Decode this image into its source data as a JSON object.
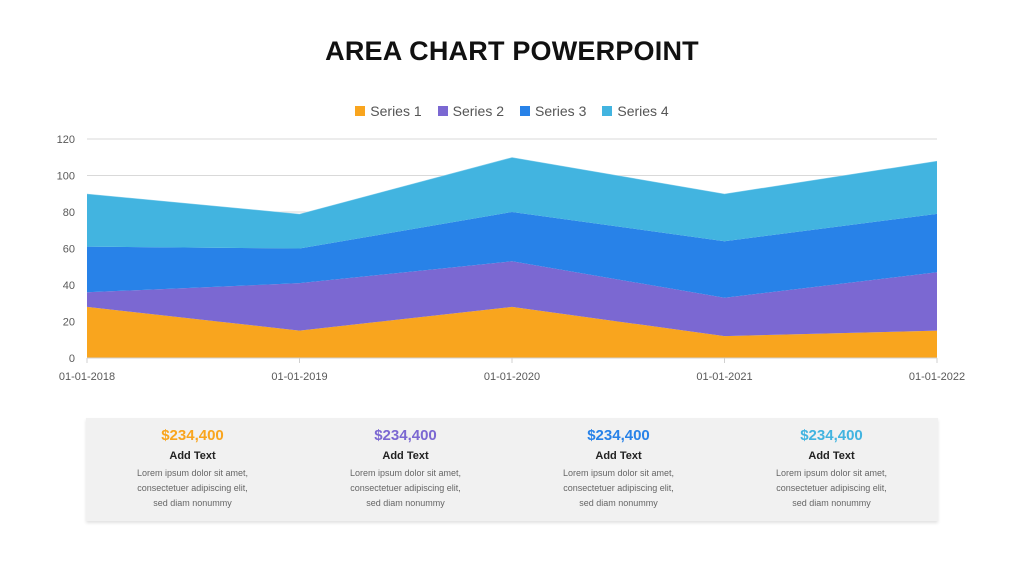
{
  "slide": {
    "title": "AREA CHART POWERPOINT"
  },
  "chart_data": {
    "type": "area",
    "stacked": true,
    "x": [
      "01-01-2018",
      "01-01-2019",
      "01-01-2020",
      "01-01-2021",
      "01-01-2022"
    ],
    "series": [
      {
        "name": "Series 1",
        "values": [
          28,
          15,
          28,
          12,
          15
        ],
        "color": "#F9A51E"
      },
      {
        "name": "Series 2",
        "values": [
          8,
          26,
          25,
          21,
          32
        ],
        "color": "#7B68D2"
      },
      {
        "name": "Series 3",
        "values": [
          25,
          19,
          27,
          31,
          32
        ],
        "color": "#2882E8"
      },
      {
        "name": "Series 4",
        "values": [
          29,
          19,
          30,
          26,
          29
        ],
        "color": "#42B4E0"
      }
    ],
    "y_ticks": [
      "0",
      "20",
      "40",
      "60",
      "80",
      "100",
      "120"
    ],
    "ylim": [
      0,
      120
    ],
    "grid": true,
    "legend_position": "top"
  },
  "cards": [
    {
      "value": "$234,400",
      "heading": "Add Text",
      "body": "Lorem ipsum dolor sit amet, consectetuer adipiscing elit, sed diam nonummy",
      "color": "#F9A51E"
    },
    {
      "value": "$234,400",
      "heading": "Add Text",
      "body": "Lorem ipsum dolor sit amet, consectetuer adipiscing elit, sed diam nonummy",
      "color": "#7B68D2"
    },
    {
      "value": "$234,400",
      "heading": "Add Text",
      "body": "Lorem ipsum dolor sit amet, consectetuer adipiscing elit, sed diam nonummy",
      "color": "#2882E8"
    },
    {
      "value": "$234,400",
      "heading": "Add Text",
      "body": "Lorem ipsum dolor sit amet, consectetuer adipiscing elit, sed diam nonummy",
      "color": "#42B4E0"
    }
  ]
}
